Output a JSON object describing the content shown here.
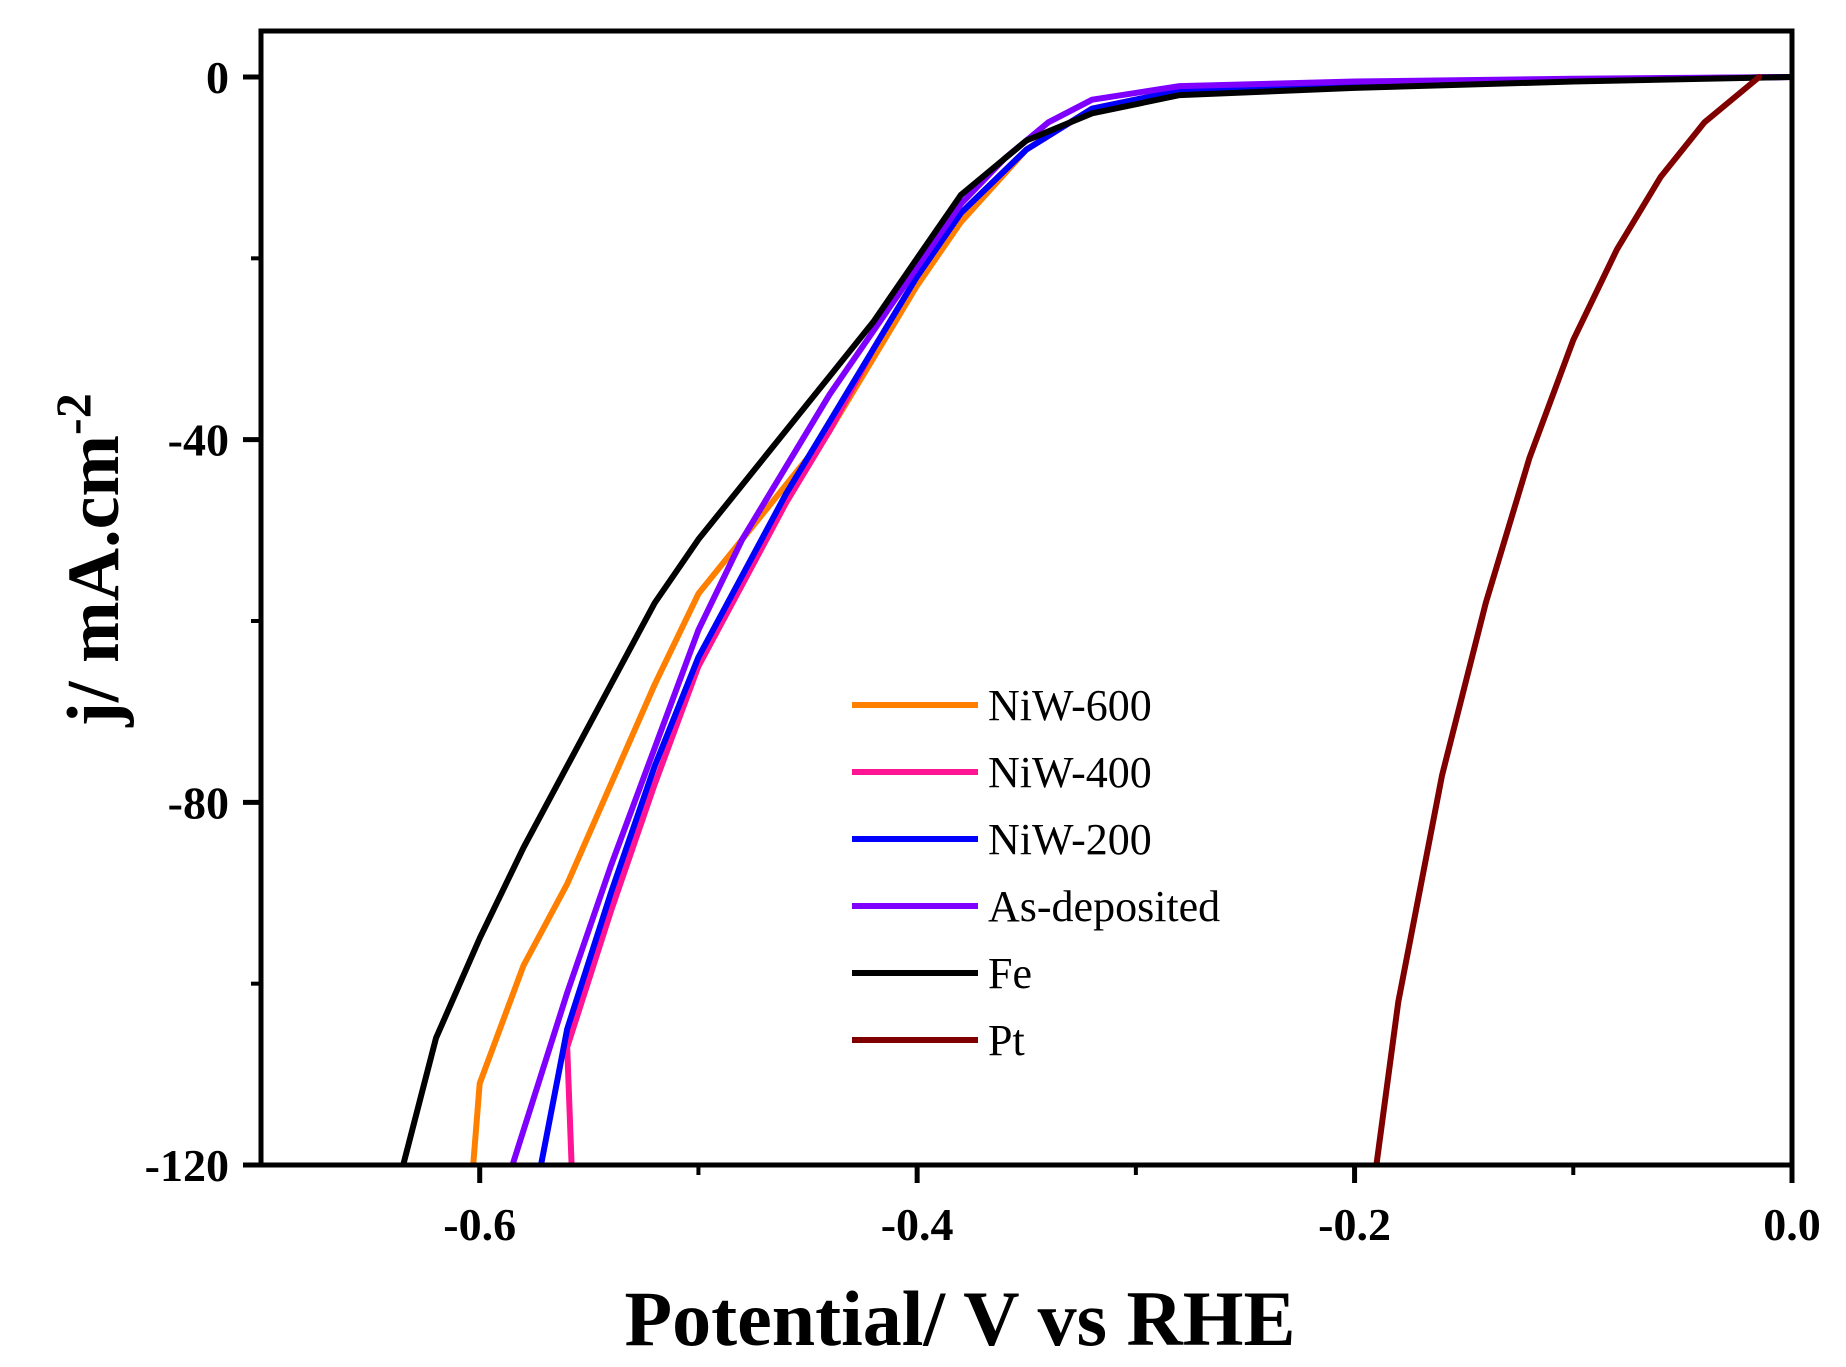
{
  "chart_data": {
    "type": "line",
    "title": "",
    "xlabel": "Potential/ V vs RHE",
    "ylabel": "j/ mA.cm",
    "ylabel_sup": "-2",
    "xlim": [
      -0.7,
      0.0
    ],
    "ylim": [
      -120,
      0
    ],
    "xticks": [
      -0.6,
      -0.4,
      -0.2,
      0.0
    ],
    "xtick_labels": [
      "-0.6",
      "-0.4",
      "-0.2",
      "0.0"
    ],
    "yticks": [
      0,
      -40,
      -80,
      -120
    ],
    "ytick_labels": [
      "0",
      "-40",
      "-80",
      "-120"
    ],
    "grid": false,
    "legend_position": "center-bottom",
    "series": [
      {
        "name": "NiW-600",
        "color": "#FF8000",
        "x": [
          0.0,
          -0.1,
          -0.2,
          -0.28,
          -0.32,
          -0.35,
          -0.38,
          -0.4,
          -0.42,
          -0.44,
          -0.46,
          -0.48,
          -0.5,
          -0.52,
          -0.54,
          -0.56,
          -0.58,
          -0.6,
          -0.603
        ],
        "y": [
          0,
          -0.3,
          -0.7,
          -1.5,
          -3.5,
          -8,
          -16,
          -23,
          -31,
          -39,
          -45,
          -51,
          -57,
          -67,
          -78,
          -89,
          -98,
          -111,
          -120
        ]
      },
      {
        "name": "NiW-400",
        "color": "#FF1493",
        "x": [
          0.0,
          -0.1,
          -0.2,
          -0.28,
          -0.32,
          -0.35,
          -0.38,
          -0.4,
          -0.42,
          -0.44,
          -0.46,
          -0.48,
          -0.5,
          -0.52,
          -0.54,
          -0.56,
          -0.558
        ],
        "y": [
          0,
          -0.3,
          -0.7,
          -1.5,
          -3.5,
          -8,
          -15,
          -22,
          -30,
          -39,
          -47,
          -56,
          -65,
          -78,
          -92,
          -107,
          -120
        ]
      },
      {
        "name": "NiW-200",
        "color": "#0000FF",
        "x": [
          0.0,
          -0.1,
          -0.2,
          -0.28,
          -0.32,
          -0.35,
          -0.38,
          -0.4,
          -0.42,
          -0.44,
          -0.46,
          -0.48,
          -0.5,
          -0.52,
          -0.54,
          -0.56,
          -0.572
        ],
        "y": [
          0,
          -0.3,
          -0.7,
          -1.5,
          -3.5,
          -8,
          -15,
          -22,
          -30,
          -38,
          -46,
          -55,
          -64,
          -76,
          -90,
          -105,
          -120
        ]
      },
      {
        "name": "As-deposited",
        "color": "#7F00FF",
        "x": [
          0.0,
          -0.1,
          -0.2,
          -0.28,
          -0.32,
          -0.34,
          -0.36,
          -0.38,
          -0.4,
          -0.42,
          -0.44,
          -0.46,
          -0.48,
          -0.5,
          -0.52,
          -0.54,
          -0.56,
          -0.585
        ],
        "y": [
          0,
          -0.2,
          -0.5,
          -1.0,
          -2.5,
          -5,
          -9,
          -14,
          -21,
          -28,
          -35,
          -43,
          -51,
          -61,
          -74,
          -87,
          -101,
          -120
        ]
      },
      {
        "name": "Fe",
        "color": "#000000",
        "x": [
          0.0,
          -0.1,
          -0.2,
          -0.28,
          -0.32,
          -0.35,
          -0.38,
          -0.4,
          -0.42,
          -0.44,
          -0.46,
          -0.48,
          -0.5,
          -0.52,
          -0.54,
          -0.56,
          -0.58,
          -0.6,
          -0.62,
          -0.635
        ],
        "y": [
          0,
          -0.5,
          -1.2,
          -2.0,
          -4,
          -7,
          -13,
          -20,
          -27,
          -33,
          -39,
          -45,
          -51,
          -58,
          -67,
          -76,
          -85,
          -95,
          -106,
          -120
        ]
      },
      {
        "name": "Pt",
        "color": "#800000",
        "x": [
          -0.015,
          -0.04,
          -0.06,
          -0.08,
          -0.1,
          -0.12,
          -0.14,
          -0.16,
          -0.18,
          -0.19
        ],
        "y": [
          0,
          -5,
          -11,
          -19,
          -29,
          -42,
          -58,
          -77,
          -102,
          -120
        ]
      }
    ]
  }
}
